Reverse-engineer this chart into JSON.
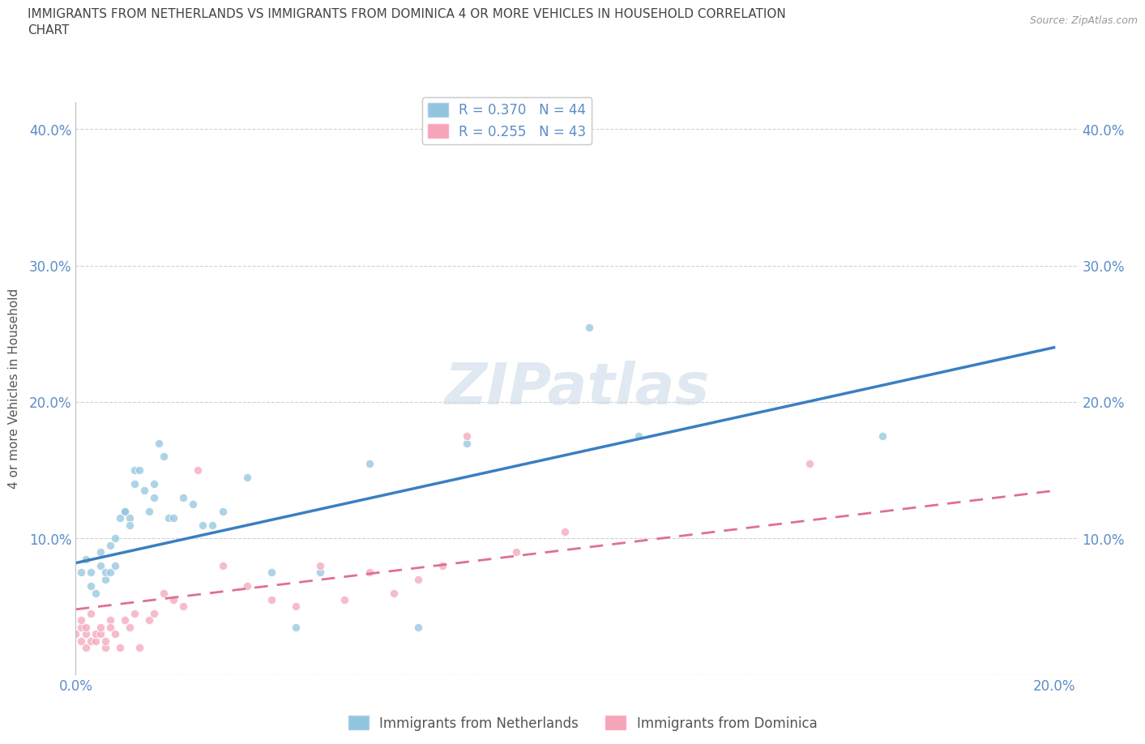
{
  "title_line1": "IMMIGRANTS FROM NETHERLANDS VS IMMIGRANTS FROM DOMINICA 4 OR MORE VEHICLES IN HOUSEHOLD CORRELATION",
  "title_line2": "CHART",
  "source": "Source: ZipAtlas.com",
  "ylabel": "4 or more Vehicles in Household",
  "watermark": "ZIPatlas",
  "legend_entry1": "R = 0.370   N = 44",
  "legend_entry2": "R = 0.255   N = 43",
  "legend_label1": "Immigrants from Netherlands",
  "legend_label2": "Immigrants from Dominica",
  "blue_color": "#92c5de",
  "pink_color": "#f4a6b8",
  "blue_line_color": "#3a7fc1",
  "pink_line_color": "#e07090",
  "title_color": "#444444",
  "source_color": "#999999",
  "axis_color": "#5b8dc9",
  "nl_scatter_x": [
    0.001,
    0.002,
    0.003,
    0.003,
    0.004,
    0.005,
    0.005,
    0.006,
    0.006,
    0.007,
    0.007,
    0.008,
    0.008,
    0.009,
    0.01,
    0.01,
    0.011,
    0.011,
    0.012,
    0.012,
    0.013,
    0.014,
    0.015,
    0.016,
    0.016,
    0.017,
    0.018,
    0.019,
    0.02,
    0.022,
    0.024,
    0.026,
    0.028,
    0.03,
    0.035,
    0.04,
    0.045,
    0.05,
    0.06,
    0.07,
    0.08,
    0.105,
    0.115,
    0.165
  ],
  "nl_scatter_y": [
    0.075,
    0.085,
    0.065,
    0.075,
    0.06,
    0.08,
    0.09,
    0.07,
    0.075,
    0.075,
    0.095,
    0.1,
    0.08,
    0.115,
    0.12,
    0.12,
    0.115,
    0.11,
    0.14,
    0.15,
    0.15,
    0.135,
    0.12,
    0.13,
    0.14,
    0.17,
    0.16,
    0.115,
    0.115,
    0.13,
    0.125,
    0.11,
    0.11,
    0.12,
    0.145,
    0.075,
    0.035,
    0.075,
    0.155,
    0.035,
    0.17,
    0.255,
    0.175,
    0.175
  ],
  "dom_scatter_x": [
    0.0,
    0.001,
    0.001,
    0.001,
    0.002,
    0.002,
    0.002,
    0.003,
    0.003,
    0.004,
    0.004,
    0.005,
    0.005,
    0.006,
    0.006,
    0.007,
    0.007,
    0.008,
    0.009,
    0.01,
    0.011,
    0.012,
    0.013,
    0.015,
    0.016,
    0.018,
    0.02,
    0.022,
    0.025,
    0.03,
    0.035,
    0.04,
    0.045,
    0.05,
    0.055,
    0.06,
    0.065,
    0.07,
    0.075,
    0.08,
    0.09,
    0.1,
    0.15
  ],
  "dom_scatter_y": [
    0.03,
    0.025,
    0.035,
    0.04,
    0.02,
    0.03,
    0.035,
    0.025,
    0.045,
    0.025,
    0.03,
    0.03,
    0.035,
    0.02,
    0.025,
    0.04,
    0.035,
    0.03,
    0.02,
    0.04,
    0.035,
    0.045,
    0.02,
    0.04,
    0.045,
    0.06,
    0.055,
    0.05,
    0.15,
    0.08,
    0.065,
    0.055,
    0.05,
    0.08,
    0.055,
    0.075,
    0.06,
    0.07,
    0.08,
    0.175,
    0.09,
    0.105,
    0.155
  ],
  "nl_line_x": [
    0.0,
    0.2
  ],
  "nl_line_y": [
    0.082,
    0.24
  ],
  "dom_line_x": [
    0.0,
    0.2
  ],
  "dom_line_y": [
    0.048,
    0.135
  ],
  "xlim": [
    0.0,
    0.205
  ],
  "ylim": [
    0.0,
    0.42
  ],
  "yticks": [
    0.0,
    0.1,
    0.2,
    0.3,
    0.4
  ],
  "ytick_labels": [
    "",
    "10.0%",
    "20.0%",
    "30.0%",
    "40.0%"
  ],
  "xticks": [
    0.0,
    0.05,
    0.1,
    0.15,
    0.2
  ],
  "xtick_labels": [
    "0.0%",
    "",
    "",
    "",
    "20.0%"
  ],
  "grid_color": "#cccccc",
  "background_color": "#ffffff"
}
